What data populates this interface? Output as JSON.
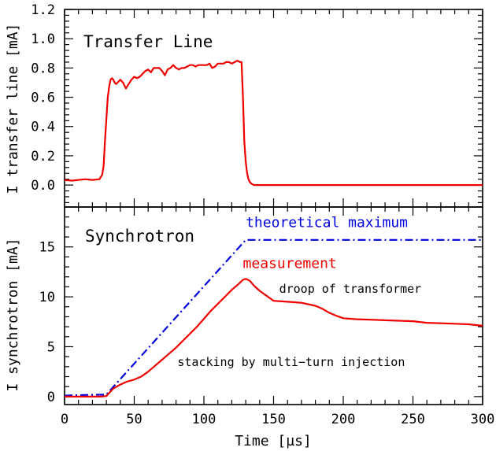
{
  "chart_data": [
    {
      "type": "line",
      "title": "Transfer Line",
      "xlabel": "",
      "ylabel": "I transfer line [mA]",
      "xlim": [
        0,
        300
      ],
      "ylim": [
        -0.15,
        1.2
      ],
      "yticks": [
        0.0,
        0.2,
        0.4,
        0.6,
        0.8,
        1.0,
        1.2
      ],
      "ytick_labels": [
        "0.0",
        "0.2",
        "0.4",
        "0.6",
        "0.8",
        "1.0",
        "1.2"
      ],
      "grid": false,
      "series": [
        {
          "color": "#ee0000",
          "x": [
            0,
            5,
            10,
            15,
            20,
            25,
            27,
            28,
            29,
            30,
            31,
            32,
            33,
            34,
            35,
            36,
            37,
            38,
            39,
            40,
            42,
            44,
            46,
            48,
            50,
            52,
            54,
            56,
            58,
            60,
            62,
            64,
            66,
            68,
            70,
            72,
            74,
            76,
            78,
            80,
            82,
            84,
            86,
            88,
            90,
            92,
            94,
            96,
            98,
            100,
            102,
            104,
            106,
            108,
            110,
            112,
            114,
            116,
            118,
            120,
            122,
            124,
            126,
            127,
            128,
            129,
            130,
            131,
            132,
            133,
            134,
            136,
            140,
            150,
            160,
            170,
            180,
            190,
            200,
            210,
            220,
            230,
            240,
            250,
            260,
            270,
            280,
            290,
            300
          ],
          "y": [
            0.035,
            0.03,
            0.035,
            0.04,
            0.035,
            0.04,
            0.07,
            0.13,
            0.3,
            0.45,
            0.6,
            0.67,
            0.72,
            0.73,
            0.72,
            0.7,
            0.69,
            0.7,
            0.71,
            0.72,
            0.7,
            0.66,
            0.69,
            0.72,
            0.74,
            0.73,
            0.74,
            0.76,
            0.78,
            0.79,
            0.77,
            0.8,
            0.8,
            0.8,
            0.78,
            0.75,
            0.79,
            0.8,
            0.82,
            0.8,
            0.79,
            0.8,
            0.8,
            0.81,
            0.82,
            0.82,
            0.81,
            0.82,
            0.82,
            0.82,
            0.82,
            0.83,
            0.8,
            0.81,
            0.83,
            0.83,
            0.83,
            0.84,
            0.84,
            0.83,
            0.84,
            0.85,
            0.84,
            0.84,
            0.6,
            0.3,
            0.16,
            0.08,
            0.04,
            0.02,
            0.01,
            0.0,
            0.0,
            0.0,
            0.0,
            0.0,
            0.0,
            0.0,
            0.0,
            0.0,
            0.0,
            0.0,
            0.0,
            0.0,
            0.0,
            0.0,
            0.0,
            0.0,
            0.0
          ]
        }
      ]
    },
    {
      "type": "line",
      "title": "Synchrotron",
      "xlabel": "Time [µs]",
      "ylabel": "I synchrotron [mA]",
      "xlim": [
        0,
        300
      ],
      "ylim": [
        -0.8,
        19
      ],
      "xticks": [
        0,
        50,
        100,
        150,
        200,
        250,
        300
      ],
      "xtick_labels": [
        "0",
        "50",
        "100",
        "150",
        "200",
        "250",
        "300"
      ],
      "yticks": [
        0,
        5,
        10,
        15
      ],
      "ytick_labels": [
        "0",
        "5",
        "10",
        "15"
      ],
      "grid": false,
      "series": [
        {
          "name": "theoretical maximum",
          "color": "#0000dd",
          "dash": "dash-dot",
          "x": [
            0,
            10,
            20,
            30,
            130,
            300
          ],
          "y": [
            0.1,
            0.15,
            0.18,
            0.2,
            15.7,
            15.7
          ]
        },
        {
          "name": "measurement",
          "color": "#ee0000",
          "dash": "solid",
          "x": [
            0,
            10,
            20,
            25,
            30,
            32,
            35,
            40,
            45,
            50,
            55,
            60,
            65,
            70,
            75,
            80,
            85,
            90,
            95,
            100,
            105,
            110,
            115,
            120,
            125,
            128,
            130,
            133,
            136,
            140,
            145,
            150,
            160,
            170,
            180,
            185,
            190,
            195,
            200,
            210,
            220,
            230,
            240,
            250,
            260,
            270,
            280,
            290,
            300
          ],
          "y": [
            0,
            0,
            0,
            0,
            0.05,
            0.35,
            0.8,
            1.2,
            1.5,
            1.7,
            2.0,
            2.5,
            3.1,
            3.7,
            4.3,
            4.9,
            5.6,
            6.3,
            7.0,
            7.8,
            8.6,
            9.3,
            10.0,
            10.7,
            11.3,
            11.7,
            11.8,
            11.6,
            11.1,
            10.6,
            10.1,
            9.6,
            9.5,
            9.4,
            9.1,
            8.8,
            8.4,
            8.1,
            7.85,
            7.75,
            7.7,
            7.65,
            7.6,
            7.55,
            7.4,
            7.35,
            7.3,
            7.25,
            7.1
          ]
        }
      ],
      "annotations": [
        {
          "text": "theoretical maximum",
          "x": 130,
          "y": 17.0,
          "color": "#0000dd"
        },
        {
          "text": "measurement",
          "x": 128,
          "y": 12.9,
          "color": "#ee0000"
        },
        {
          "text": "droop of transformer",
          "x": 154,
          "y": 10.4,
          "color": "#000000"
        },
        {
          "text": "stacking by multi−turn injection",
          "x": 81,
          "y": 3.05,
          "color": "#000000"
        }
      ]
    }
  ]
}
